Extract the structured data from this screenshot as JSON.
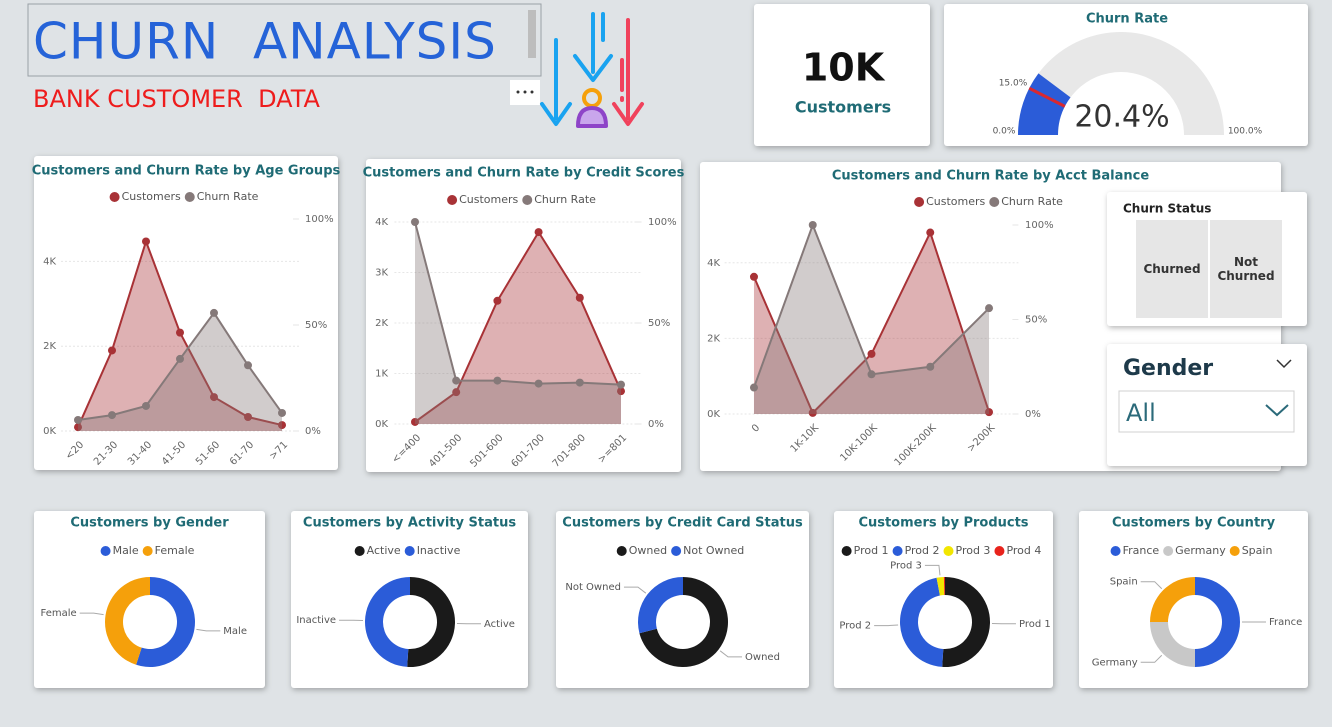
{
  "header": {
    "title": "CHURN  ANALYSIS",
    "subtitle": "BANK CUSTOMER  DATA"
  },
  "kpi": {
    "value": "10K",
    "label": "Customers"
  },
  "churn_status": {
    "title": "Churn Status",
    "options": [
      "Churned",
      "Not Churned"
    ]
  },
  "gender_slicer": {
    "title": "Gender",
    "selection": "All"
  },
  "chart_data": [
    {
      "type": "gauge",
      "title": "Churn Rate",
      "value": 20.4,
      "value_label": "20.4%",
      "min": {
        "value": 0,
        "label": "0.0%"
      },
      "max": {
        "value": 100,
        "label": "100.0%"
      },
      "target": {
        "value": 15,
        "label": "15.0%"
      },
      "color": "#2b5cd8",
      "target_color": "#d9282f"
    },
    {
      "type": "area",
      "title": "Customers and Churn Rate by Age Groups",
      "categories": [
        "<20",
        "21-30",
        "31-40",
        "41-50",
        "51-60",
        "61-70",
        ">71"
      ],
      "series": [
        {
          "name": "Customers",
          "color": "#a83236",
          "values": [
            90,
            1900,
            4470,
            2320,
            800,
            330,
            140
          ]
        },
        {
          "name": "Churn Rate",
          "color": "#857979",
          "axis": "y2",
          "values": [
            5.2,
            7.5,
            11.8,
            34,
            55.7,
            31,
            8.5
          ]
        }
      ],
      "ylim": [
        0,
        5000
      ],
      "yticks": [
        {
          "value": 0,
          "label": "0K"
        },
        {
          "value": 2000,
          "label": "2K"
        },
        {
          "value": 4000,
          "label": "4K"
        }
      ],
      "y2lim": [
        0,
        100
      ],
      "y2ticks": [
        {
          "value": 0,
          "label": "0%"
        },
        {
          "value": 50,
          "label": "50%"
        },
        {
          "value": 100,
          "label": "100%"
        }
      ],
      "grid": true
    },
    {
      "type": "area",
      "title": "Customers and Churn Rate by Credit Scores",
      "categories": [
        "<=400",
        "401-500",
        "501-600",
        "601-700",
        "701-800",
        ">=801"
      ],
      "series": [
        {
          "name": "Customers",
          "color": "#a83236",
          "values": [
            40,
            630,
            2440,
            3800,
            2500,
            650
          ]
        },
        {
          "name": "Churn Rate",
          "color": "#857979",
          "axis": "y2",
          "values": [
            100,
            21.5,
            21.5,
            20,
            20.5,
            19.5
          ]
        }
      ],
      "ylim": [
        0,
        4000
      ],
      "yticks": [
        {
          "value": 0,
          "label": "0K"
        },
        {
          "value": 1000,
          "label": "1K"
        },
        {
          "value": 2000,
          "label": "2K"
        },
        {
          "value": 3000,
          "label": "3K"
        },
        {
          "value": 4000,
          "label": "4K"
        }
      ],
      "y2lim": [
        0,
        100
      ],
      "y2ticks": [
        {
          "value": 0,
          "label": "0%"
        },
        {
          "value": 50,
          "label": "50%"
        },
        {
          "value": 100,
          "label": "100%"
        }
      ],
      "grid": true
    },
    {
      "type": "area",
      "title": "Customers and Churn Rate by Acct Balance",
      "categories": [
        "0",
        "1K-10K",
        "10K-100K",
        "100K-200K",
        ">200K"
      ],
      "series": [
        {
          "name": "Customers",
          "color": "#a83236",
          "values": [
            3630,
            30,
            1590,
            4800,
            50
          ]
        },
        {
          "name": "Churn Rate",
          "color": "#857979",
          "axis": "y2",
          "values": [
            14,
            100,
            21,
            25,
            56
          ]
        }
      ],
      "ylim": [
        0,
        5000
      ],
      "yticks": [
        {
          "value": 0,
          "label": "0K"
        },
        {
          "value": 2000,
          "label": "2K"
        },
        {
          "value": 4000,
          "label": "4K"
        }
      ],
      "y2lim": [
        0,
        100
      ],
      "y2ticks": [
        {
          "value": 0,
          "label": "0%"
        },
        {
          "value": 50,
          "label": "50%"
        },
        {
          "value": 100,
          "label": "100%"
        }
      ],
      "grid": true
    },
    {
      "type": "donut",
      "title": "Customers by Gender",
      "categories": [
        "Male",
        "Female"
      ],
      "values": [
        55,
        45
      ],
      "colors": [
        "#2b5cd8",
        "#f5a00b"
      ]
    },
    {
      "type": "donut",
      "title": "Customers by Activity Status",
      "categories": [
        "Active",
        "Inactive"
      ],
      "values": [
        51,
        49
      ],
      "colors": [
        "#1a1a1a",
        "#2b5cd8"
      ]
    },
    {
      "type": "donut",
      "title": "Customers by Credit Card Status",
      "categories": [
        "Owned",
        "Not Owned"
      ],
      "values": [
        71,
        29
      ],
      "colors": [
        "#1a1a1a",
        "#2b5cd8"
      ]
    },
    {
      "type": "donut",
      "title": "Customers by Products",
      "categories": [
        "Prod 1",
        "Prod 2",
        "Prod 3",
        "Prod 4"
      ],
      "values": [
        51,
        46,
        2.6,
        0.4
      ],
      "colors": [
        "#1a1a1a",
        "#2b5cd8",
        "#f2e600",
        "#e8231c"
      ]
    },
    {
      "type": "donut",
      "title": "Customers by Country",
      "categories": [
        "France",
        "Germany",
        "Spain"
      ],
      "values": [
        50,
        25,
        25
      ],
      "colors": [
        "#2b5cd8",
        "#c8c8c8",
        "#f5a00b"
      ]
    }
  ]
}
